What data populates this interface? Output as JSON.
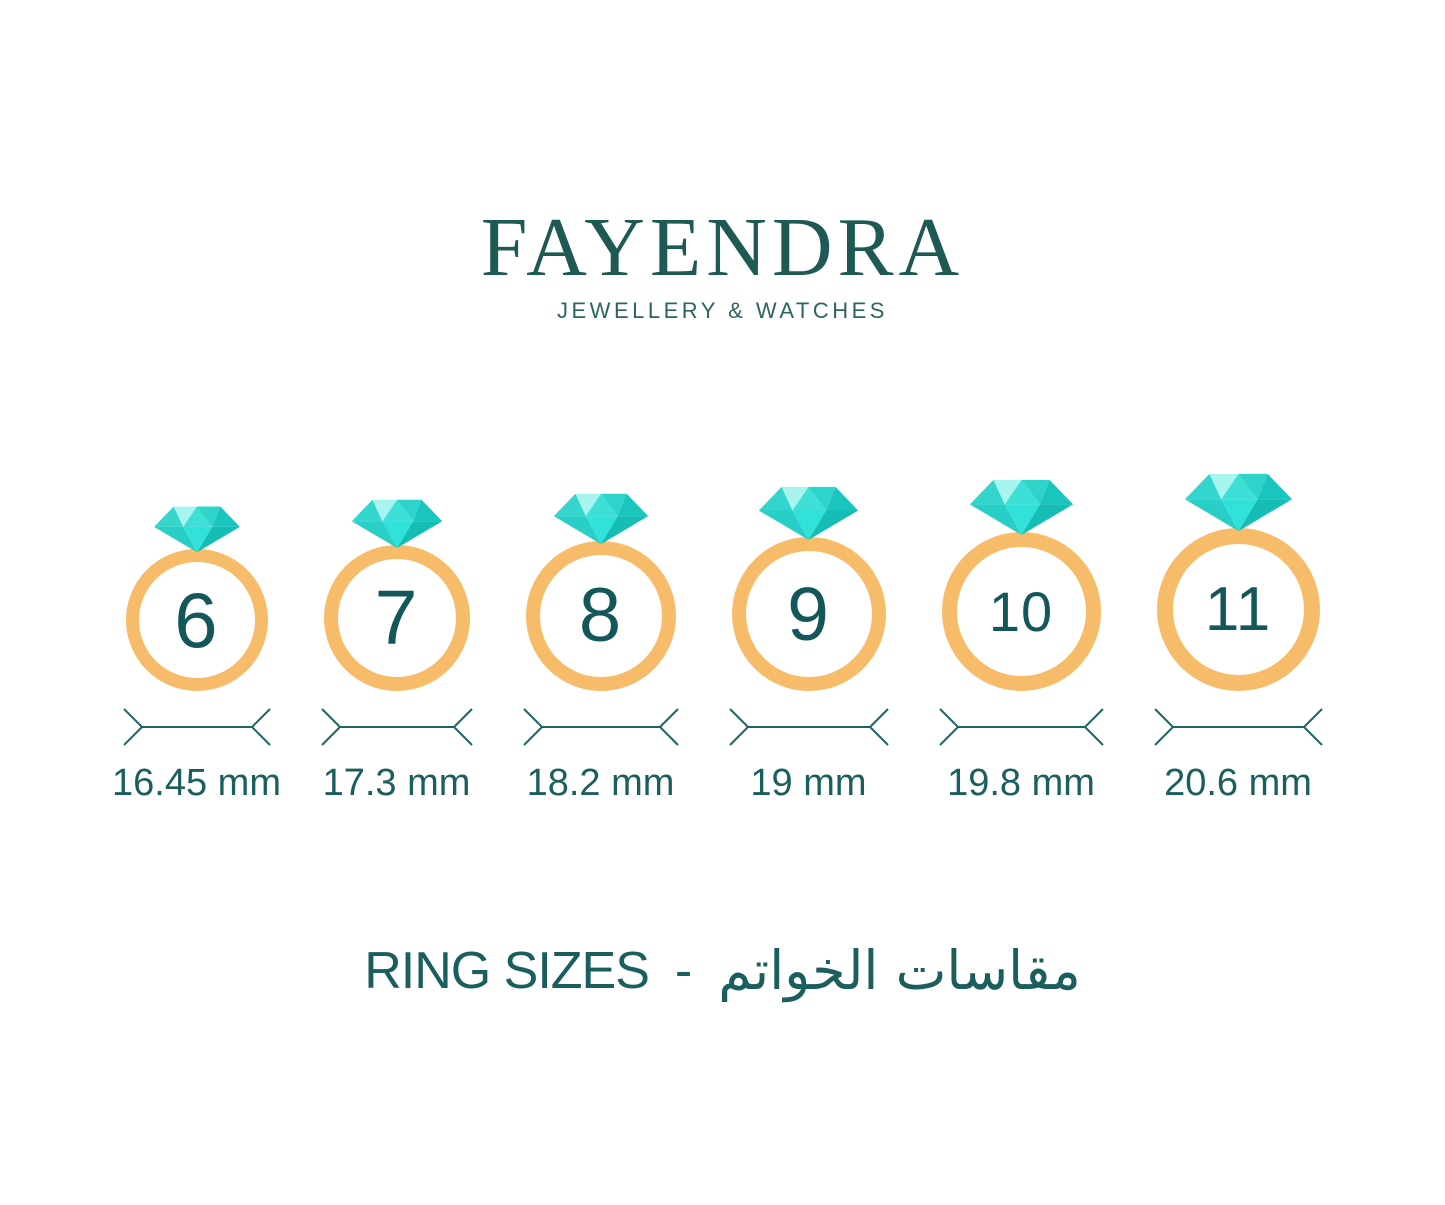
{
  "brand": {
    "name": "FAYENDRA",
    "tagline": "JEWELLERY & WATCHES"
  },
  "rings": [
    {
      "size": "6",
      "diameter": "16.45 mm"
    },
    {
      "size": "7",
      "diameter": "17.3 mm"
    },
    {
      "size": "8",
      "diameter": "18.2 mm"
    },
    {
      "size": "9",
      "diameter": "19 mm"
    },
    {
      "size": "10",
      "diameter": "19.8 mm"
    },
    {
      "size": "11",
      "diameter": "20.6 mm"
    }
  ],
  "footer": {
    "title_en": "RING SIZES",
    "separator": "-",
    "title_ar": "مقاسات الخواتم"
  },
  "colors": {
    "brand_green": "#1e5a53",
    "teal_text": "#1a5f5e",
    "number_teal": "#13575a",
    "band_orange": "#f7bc69",
    "arrow_teal": "#1c6565",
    "diamond": {
      "crown_left": "#33d5cc",
      "crown_pale": "#a8f4ef",
      "crown_mid": "#3edfd7",
      "crown_mid2": "#2ed3ca",
      "crown_dark": "#19c5bd",
      "pav_left": "#27cfc6",
      "pav_center": "#30e2da",
      "pav_right": "#15bdb5"
    }
  }
}
